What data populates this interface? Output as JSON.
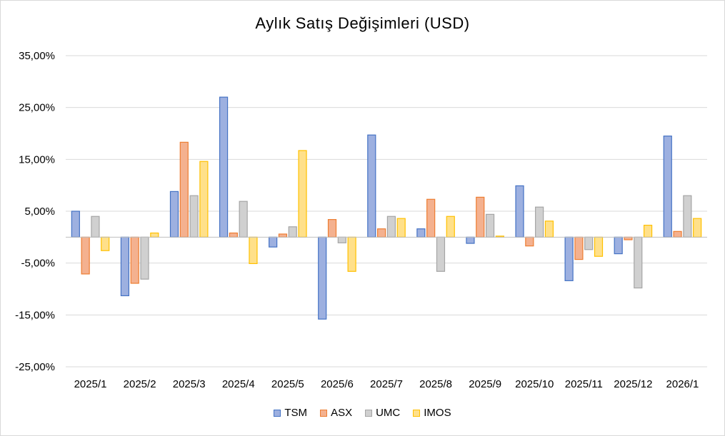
{
  "chart_data": {
    "type": "bar",
    "title": "Aylık Satış Değişimleri  (USD)",
    "categories": [
      "2025/1",
      "2025/2",
      "2025/3",
      "2025/4",
      "2025/5",
      "2025/6",
      "2025/7",
      "2025/8",
      "2025/9",
      "2025/10",
      "2025/11",
      "2025/12",
      "2026/1"
    ],
    "series": [
      {
        "name": "TSM",
        "color": "#4472C4",
        "fill": "#9DB0E0",
        "values": [
          5.0,
          -11.3,
          8.8,
          27.0,
          -1.9,
          -15.8,
          19.7,
          1.6,
          -1.2,
          9.9,
          -8.4,
          -3.2,
          19.5
        ]
      },
      {
        "name": "ASX",
        "color": "#ED7D31",
        "fill": "#F4B18F",
        "values": [
          -7.1,
          -8.9,
          18.3,
          0.8,
          0.6,
          3.4,
          1.6,
          7.3,
          7.7,
          -1.7,
          -4.3,
          -0.5,
          1.1
        ]
      },
      {
        "name": "UMC",
        "color": "#A5A5A5",
        "fill": "#D0D0D0",
        "values": [
          4.0,
          -8.1,
          8.0,
          6.9,
          2.0,
          -1.1,
          4.0,
          -6.6,
          4.4,
          5.8,
          -2.4,
          -9.8,
          8.0
        ]
      },
      {
        "name": "IMOS",
        "color": "#FFC000",
        "fill": "#FFE08A",
        "values": [
          -2.6,
          0.8,
          14.6,
          -5.1,
          16.7,
          -6.6,
          3.6,
          4.0,
          0.2,
          3.1,
          -3.7,
          2.3,
          3.6
        ]
      }
    ],
    "yticks": [
      "35,00%",
      "25,00%",
      "15,00%",
      "5,00%",
      "-5,00%",
      "-15,00%",
      "-25,00%"
    ],
    "ytick_values": [
      35,
      25,
      15,
      5,
      -5,
      -15,
      -25
    ],
    "ylim": [
      -25,
      35
    ],
    "grid": true,
    "legend_position": "bottom"
  }
}
